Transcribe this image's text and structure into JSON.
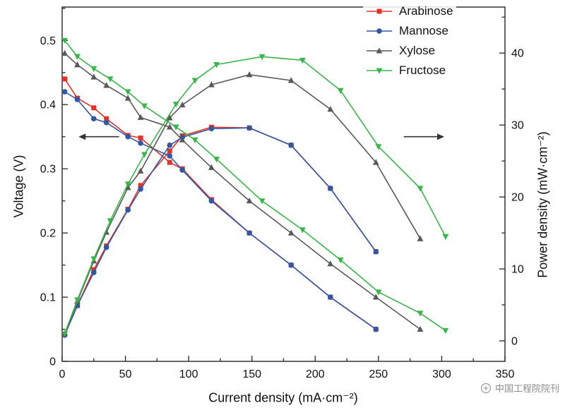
{
  "watermark": {
    "text": "中国工程院院刊"
  },
  "chart_data": {
    "type": "line",
    "title": "",
    "xlabel": "Current density (mA·cm⁻²)",
    "ylabel_left": "Voltage (V)",
    "ylabel_right": "Power density (mW·cm⁻²)",
    "xlim": [
      0,
      350
    ],
    "ylim_left": [
      0,
      0.552
    ],
    "ylim_right": [
      -2.85,
      46.4
    ],
    "x_ticks": [
      "0",
      "50",
      "100",
      "150",
      "200",
      "250",
      "300",
      "350"
    ],
    "y_ticks_left": [
      "0",
      "0.1",
      "0.2",
      "0.3",
      "0.4",
      "0.5"
    ],
    "y_ticks_right": [
      "0",
      "10",
      "20",
      "30",
      "40"
    ],
    "x_minor_step": 25,
    "y_left_minor_step": 0.05,
    "y_right_minor_step": 5,
    "grid": false,
    "legend_position": "top-right",
    "axis_color": "#333333",
    "series": [
      {
        "name": "Arabinose",
        "color": "#e53127",
        "marker": "square",
        "voltage": {
          "x": [
            2,
            12,
            25,
            35,
            52,
            62,
            85,
            95,
            118,
            148,
            181,
            212,
            248
          ],
          "y": [
            0.44,
            0.41,
            0.395,
            0.378,
            0.352,
            0.348,
            0.31,
            0.3,
            0.252,
            0.2,
            0.15,
            0.1,
            0.05
          ]
        },
        "power": {
          "x": [
            2,
            12,
            25,
            35,
            52,
            62,
            85,
            95,
            118,
            148,
            181,
            212,
            248
          ],
          "y": [
            0.9,
            4.9,
            9.9,
            13.2,
            18.3,
            21.6,
            26.4,
            28.5,
            29.7,
            29.6,
            27.2,
            21.2,
            12.4
          ]
        }
      },
      {
        "name": "Mannose",
        "color": "#3058a5",
        "marker": "circle",
        "voltage": {
          "x": [
            2,
            12,
            25,
            35,
            52,
            62,
            85,
            95,
            118,
            148,
            181,
            212,
            248
          ],
          "y": [
            0.42,
            0.408,
            0.378,
            0.372,
            0.35,
            0.34,
            0.32,
            0.298,
            0.25,
            0.2,
            0.15,
            0.1,
            0.05
          ]
        },
        "power": {
          "x": [
            2,
            12,
            25,
            35,
            52,
            62,
            85,
            95,
            118,
            148,
            181,
            212,
            248
          ],
          "y": [
            0.8,
            4.9,
            9.5,
            13.0,
            18.2,
            21.1,
            27.2,
            28.3,
            29.5,
            29.6,
            27.2,
            21.2,
            12.4
          ]
        }
      },
      {
        "name": "Xylose",
        "color": "#595959",
        "marker": "triangle-up",
        "voltage": {
          "x": [
            2,
            12,
            25,
            35,
            52,
            62,
            85,
            95,
            118,
            148,
            181,
            212,
            248,
            283
          ],
          "y": [
            0.48,
            0.462,
            0.443,
            0.43,
            0.41,
            0.38,
            0.365,
            0.345,
            0.302,
            0.25,
            0.2,
            0.152,
            0.1,
            0.05
          ]
        },
        "power": {
          "x": [
            2,
            12,
            25,
            35,
            52,
            62,
            85,
            95,
            118,
            148,
            181,
            212,
            248,
            283
          ],
          "y": [
            1.0,
            5.5,
            11.1,
            15.1,
            21.3,
            23.6,
            31.0,
            32.8,
            35.6,
            37.0,
            36.2,
            32.2,
            24.8,
            14.2
          ]
        }
      },
      {
        "name": "Fructose",
        "color": "#3ab54a",
        "marker": "triangle-down",
        "voltage": {
          "x": [
            2,
            12,
            25,
            38,
            52,
            65,
            90,
            105,
            122,
            158,
            190,
            220,
            250,
            283,
            303
          ],
          "y": [
            0.5,
            0.475,
            0.456,
            0.44,
            0.42,
            0.398,
            0.365,
            0.345,
            0.315,
            0.25,
            0.205,
            0.158,
            0.108,
            0.075,
            0.048
          ]
        },
        "power": {
          "x": [
            2,
            12,
            25,
            38,
            52,
            65,
            90,
            105,
            122,
            158,
            190,
            220,
            250,
            283,
            303
          ],
          "y": [
            1.0,
            5.7,
            11.4,
            16.7,
            21.8,
            25.9,
            32.9,
            36.2,
            38.4,
            39.5,
            39.0,
            34.8,
            27.0,
            21.2,
            14.5
          ]
        }
      }
    ],
    "annotations": [
      {
        "type": "arrow",
        "points_to": "left-axis",
        "x_from": 45,
        "x_to": 13,
        "y_left": 0.35
      },
      {
        "type": "arrow",
        "points_to": "right-axis",
        "x_from": 270,
        "x_to": 302,
        "y_left": 0.35
      }
    ]
  }
}
